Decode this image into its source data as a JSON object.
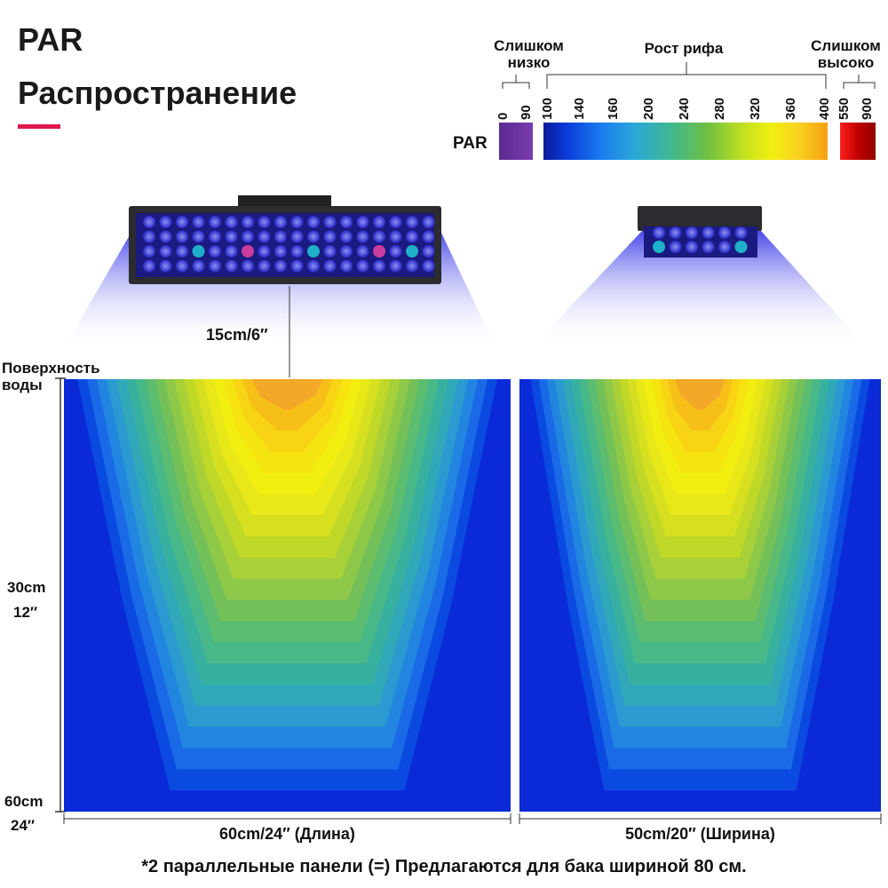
{
  "title": {
    "line1": "PAR",
    "line2": "Распространение"
  },
  "legend": {
    "zone_low": "Слишком низко",
    "zone_growth": "Рост рифа",
    "zone_high": "Слишком высоко",
    "par_label": "PAR",
    "ticks_low": [
      "0",
      "90"
    ],
    "ticks_growth": [
      "100",
      "140",
      "160",
      "200",
      "240",
      "280",
      "320",
      "360",
      "400"
    ],
    "ticks_high": [
      "550",
      "900"
    ],
    "colors": {
      "low": "#6a2fa0",
      "growth_start": "#0a2fd0",
      "growth_mid": "#3fbfa0",
      "growth_end": "#f5b000",
      "high": "#e00000"
    }
  },
  "fixtures": {
    "left_icon": "led-panel-long-icon",
    "right_icon": "led-panel-short-icon"
  },
  "height_label": "15cm/6″",
  "axis": {
    "surface": "Поверхность воды",
    "mid_cm": "30cm",
    "mid_in": "12″",
    "bottom_cm": "60cm",
    "bottom_in": "24″"
  },
  "maps": {
    "left_caption": "60cm/24″  (Длина)",
    "right_caption": "50cm/20″  (Ширина)"
  },
  "footnote": "*2 параллельные панели (=) Предлагаются для бака шириной 80 см."
}
